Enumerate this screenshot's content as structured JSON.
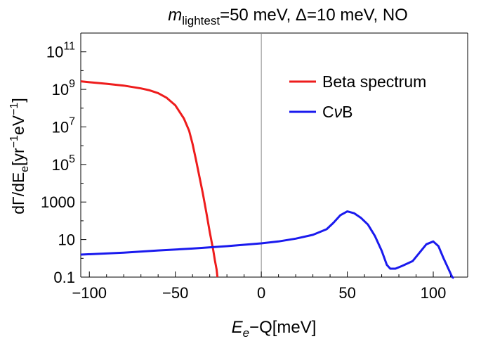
{
  "chart_data": {
    "type": "line",
    "title": {
      "m": "m",
      "sub": "lightest",
      "rest": "=50 meV, Δ=10 meV, NO"
    },
    "xlabel": {
      "main": "E",
      "sub": "e",
      "rest": "−Q[meV]"
    },
    "ylabel": {
      "part1": "dΓ/dE",
      "sub": "e",
      "part2": "[yr",
      "sup1": "−1",
      "part3": "eV",
      "sup2": "−1",
      "part4": "]"
    },
    "xlim": [
      -105,
      120
    ],
    "ylim_log10": [
      -1,
      12
    ],
    "y_scale": "log",
    "x_ticks": [
      {
        "value": -100,
        "label": "−100"
      },
      {
        "value": -50,
        "label": "−50"
      },
      {
        "value": 0,
        "label": "0"
      },
      {
        "value": 50,
        "label": "50"
      },
      {
        "value": 100,
        "label": "100"
      }
    ],
    "y_ticks": [
      {
        "exp": -1,
        "base": "0.1",
        "sup": ""
      },
      {
        "exp": 1,
        "base": "10",
        "sup": ""
      },
      {
        "exp": 3,
        "base": "1000",
        "sup": ""
      },
      {
        "exp": 5,
        "base": "10",
        "sup": "5"
      },
      {
        "exp": 7,
        "base": "10",
        "sup": "7"
      },
      {
        "exp": 9,
        "base": "10",
        "sup": "9"
      },
      {
        "exp": 11,
        "base": "10",
        "sup": "11"
      }
    ],
    "vertical_line_x": 0,
    "series": [
      {
        "name": "Beta spectrum",
        "color": "#ee1c1c",
        "x": [
          -105,
          -100,
          -90,
          -80,
          -70,
          -65,
          -60,
          -55,
          -50,
          -45,
          -42,
          -40,
          -38,
          -36,
          -34,
          -32,
          -30,
          -28,
          -27,
          -26,
          -25.5
        ],
        "log10y": [
          9.43,
          9.38,
          9.3,
          9.2,
          9.05,
          8.95,
          8.8,
          8.55,
          8.15,
          7.45,
          6.8,
          6.1,
          5.25,
          4.35,
          3.45,
          2.45,
          1.4,
          0.45,
          -0.1,
          -0.6,
          -1.0
        ]
      },
      {
        "name": "CνB",
        "color": "#1a1aee",
        "x": [
          -105,
          -80,
          -60,
          -40,
          -20,
          0,
          10,
          20,
          30,
          38,
          42,
          46,
          50,
          54,
          58,
          62,
          66,
          70,
          73,
          75,
          78,
          82,
          88,
          92,
          96,
          100,
          103,
          106,
          109,
          111,
          112
        ],
        "log10y": [
          0.2,
          0.3,
          0.42,
          0.52,
          0.65,
          0.8,
          0.9,
          1.05,
          1.25,
          1.55,
          1.9,
          2.3,
          2.5,
          2.4,
          2.15,
          1.8,
          1.2,
          0.4,
          -0.35,
          -0.55,
          -0.55,
          -0.4,
          -0.15,
          0.3,
          0.75,
          0.9,
          0.65,
          0.0,
          -0.6,
          -1.0,
          -1.05
        ]
      }
    ],
    "legend": [
      {
        "label_part1": "C",
        "label_nu": "ν",
        "label_part2": "B",
        "series": 1
      },
      {
        "label": "Beta spectrum",
        "series": 0
      }
    ]
  }
}
